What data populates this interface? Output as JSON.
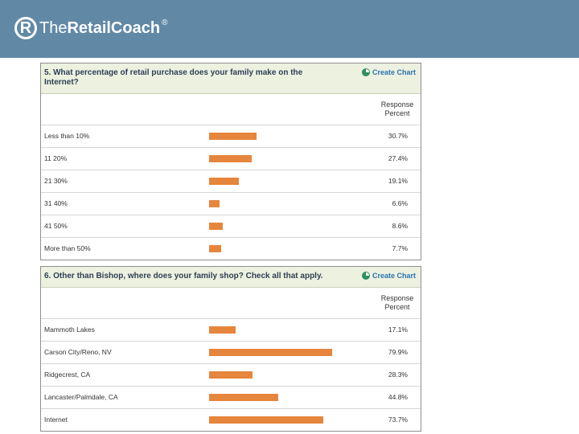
{
  "header": {
    "logo_mark": "R",
    "logo_the": "The",
    "logo_name": "RetailCoach",
    "logo_reg": "®"
  },
  "chart_data": [
    {
      "type": "bar",
      "title": "5. What percentage of retail purchase does your family make on the Internet?",
      "action": "Create Chart",
      "column_header": "Response Percent",
      "categories": [
        "Less than 10%",
        "11   20%",
        "21   30%",
        "31   40%",
        "41   50%",
        "More than 50%"
      ],
      "values": [
        30.7,
        27.4,
        19.1,
        6.6,
        8.6,
        7.7
      ],
      "value_labels": [
        "30.7%",
        "27.4%",
        "19.1%",
        "6.6%",
        "8.6%",
        "7.7%"
      ],
      "bar_color": "#e6853c",
      "xlim": [
        0,
        100
      ]
    },
    {
      "type": "bar",
      "title": "6. Other than Bishop, where does your family shop? Check all that apply.",
      "action": "Create Chart",
      "column_header": "Response Percent",
      "categories": [
        "Mammoth Lakes",
        "Carson City/Reno, NV",
        "Ridgecrest, CA",
        "Lancaster/Palmdale, CA",
        "Internet"
      ],
      "values": [
        17.1,
        79.9,
        28.3,
        44.8,
        73.7
      ],
      "value_labels": [
        "17.1%",
        "79.9%",
        "28.3%",
        "44.8%",
        "73.7%"
      ],
      "bar_color": "#e6853c",
      "xlim": [
        0,
        100
      ]
    }
  ]
}
